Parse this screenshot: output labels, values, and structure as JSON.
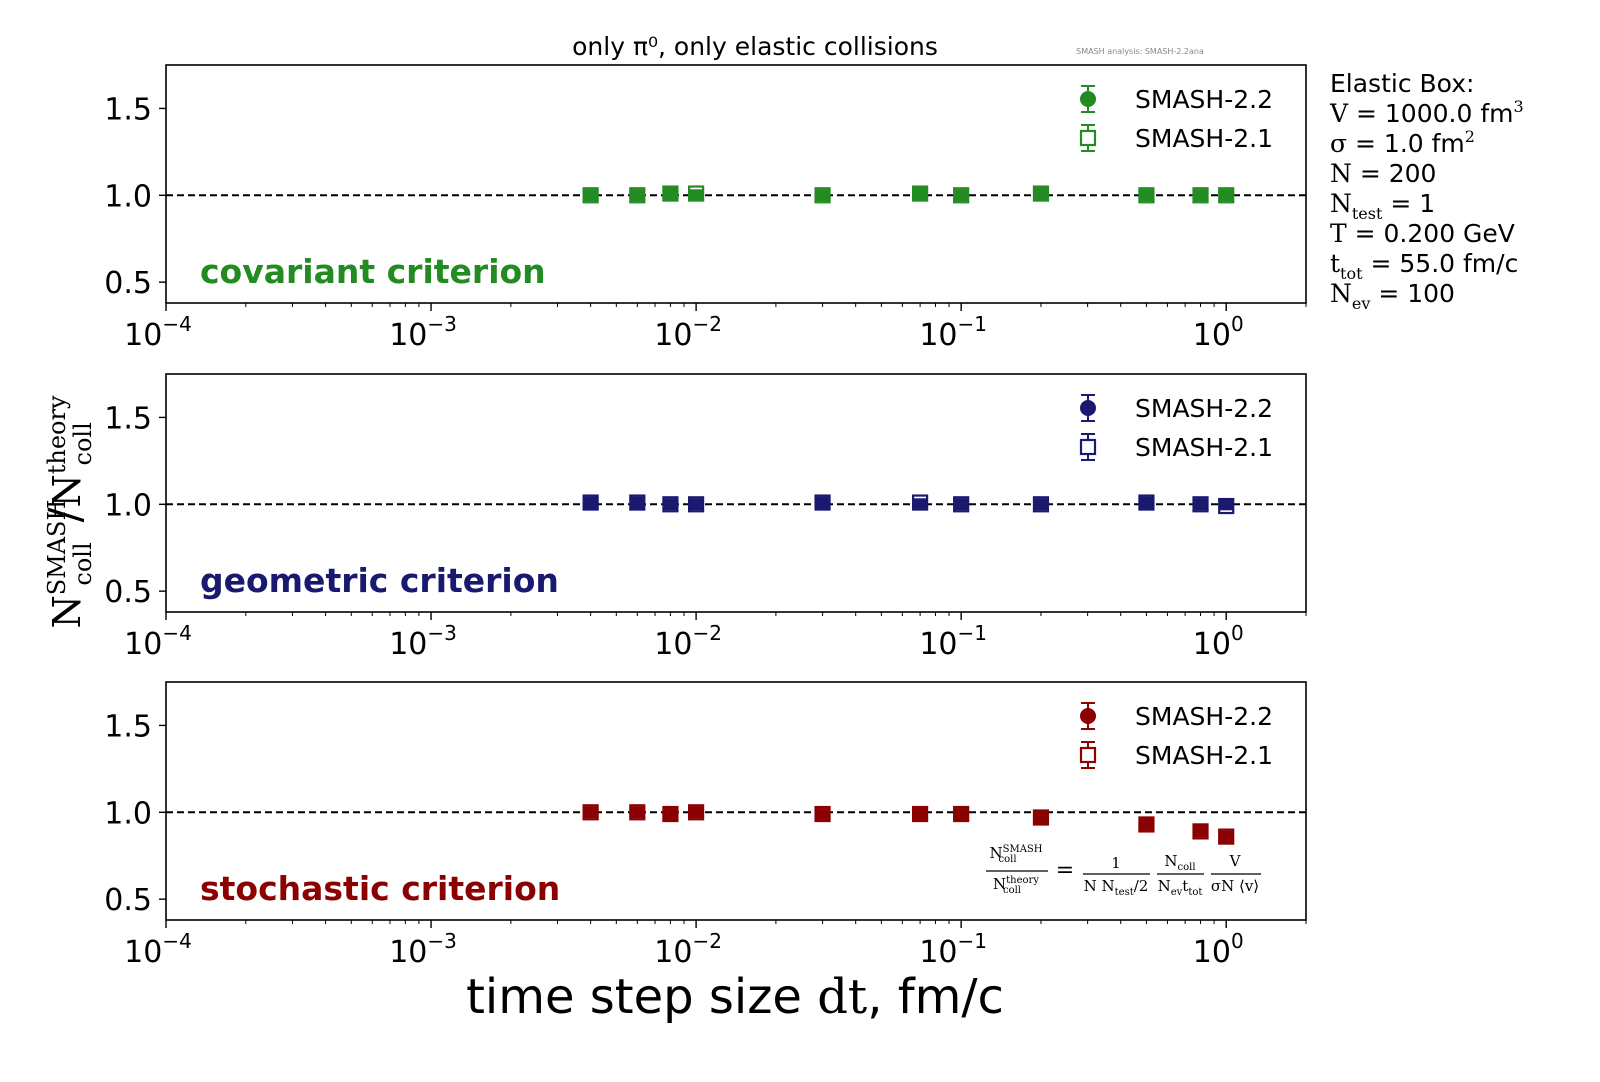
{
  "figure": {
    "title": "only π⁰, only elastic collisions",
    "watermark": "SMASH analysis: SMASH-2.2ana",
    "xlabel_prefix": "time step size ",
    "xlabel_var": "dt",
    "xlabel_suffix": ", fm/c",
    "ylabel_num": "N",
    "ylabel_num_sub": "coll",
    "ylabel_num_sup": "SMASH",
    "ylabel_slash": "/",
    "ylabel_den": "N",
    "ylabel_den_sub": "coll",
    "ylabel_den_sup": "theory",
    "info_box": {
      "heading": "Elastic Box:",
      "lines": [
        {
          "pre": "V",
          "sub": "",
          "post": " = 1000.0 fm",
          "sup": "3"
        },
        {
          "pre": "σ",
          "sub": "",
          "post": " = 1.0 fm",
          "sup": "2"
        },
        {
          "pre": "N",
          "sub": "",
          "post": " = 200",
          "sup": ""
        },
        {
          "pre": "N",
          "sub": "test",
          "post": " = 1",
          "sup": ""
        },
        {
          "pre": "T",
          "sub": "",
          "post": " = 0.200 GeV",
          "sup": ""
        },
        {
          "pre": "t",
          "sub": "tot",
          "post": " = 55.0 fm/c",
          "sup": ""
        },
        {
          "pre": "N",
          "sub": "ev",
          "post": " = 100",
          "sup": ""
        }
      ]
    },
    "formula": {
      "lhs_num": "N",
      "lhs_num_sub": "coll",
      "lhs_num_sup": "SMASH",
      "lhs_den": "N",
      "lhs_den_sub": "coll",
      "lhs_den_sup": "theory",
      "eq": "=",
      "f1_num": "1",
      "f1_den_a": "N N",
      "f1_den_sub": "test",
      "f1_den_b": "/2",
      "f2_num": "N",
      "f2_num_sub": "coll",
      "f2_den_a": "N",
      "f2_den_sub1": "ev",
      "f2_den_b": "t",
      "f2_den_sub2": "tot",
      "f3_num": "V",
      "f3_den": "σN ⟨v⟩"
    }
  },
  "chart_data": [
    {
      "type": "scatter",
      "label": "covariant criterion",
      "color": "#228b22",
      "xscale": "log",
      "xlim": [
        0.0001,
        2
      ],
      "ylim": [
        0.38,
        1.75
      ],
      "yticks": [
        "0.5",
        "1.0",
        "1.5"
      ],
      "ytick_values": [
        0.5,
        1.0,
        1.5
      ],
      "xticks": [
        {
          "base": "10",
          "exp": "−4",
          "value": 0.0001
        },
        {
          "base": "10",
          "exp": "−3",
          "value": 0.001
        },
        {
          "base": "10",
          "exp": "−2",
          "value": 0.01
        },
        {
          "base": "10",
          "exp": "−1",
          "value": 0.1
        },
        {
          "base": "10",
          "exp": "0",
          "value": 1
        }
      ],
      "reference_line": 1.0,
      "legend_placement": "top-right",
      "x": [
        0.004,
        0.006,
        0.008,
        0.01,
        0.03,
        0.07,
        0.1,
        0.2,
        0.5,
        0.8,
        1.0
      ],
      "series": [
        {
          "name": "SMASH-2.2",
          "marker": "filled-circle",
          "values": [
            1.0,
            1.0,
            1.01,
            1.0,
            1.0,
            1.01,
            1.0,
            1.01,
            1.0,
            1.0,
            1.0
          ]
        },
        {
          "name": "SMASH-2.1",
          "marker": "open-square",
          "values": [
            1.0,
            1.0,
            1.01,
            1.01,
            1.0,
            1.01,
            1.0,
            1.01,
            1.0,
            1.0,
            1.0
          ]
        }
      ]
    },
    {
      "type": "scatter",
      "label": "geometric criterion",
      "color": "#191970",
      "xscale": "log",
      "xlim": [
        0.0001,
        2
      ],
      "ylim": [
        0.38,
        1.75
      ],
      "yticks": [
        "0.5",
        "1.0",
        "1.5"
      ],
      "ytick_values": [
        0.5,
        1.0,
        1.5
      ],
      "xticks": [
        {
          "base": "10",
          "exp": "−4",
          "value": 0.0001
        },
        {
          "base": "10",
          "exp": "−3",
          "value": 0.001
        },
        {
          "base": "10",
          "exp": "−2",
          "value": 0.01
        },
        {
          "base": "10",
          "exp": "−1",
          "value": 0.1
        },
        {
          "base": "10",
          "exp": "0",
          "value": 1
        }
      ],
      "reference_line": 1.0,
      "legend_placement": "top-right",
      "x": [
        0.004,
        0.006,
        0.008,
        0.01,
        0.03,
        0.07,
        0.1,
        0.2,
        0.5,
        0.8,
        1.0
      ],
      "series": [
        {
          "name": "SMASH-2.2",
          "marker": "filled-circle",
          "values": [
            1.01,
            1.01,
            1.0,
            1.0,
            1.01,
            1.0,
            1.0,
            1.0,
            1.01,
            1.0,
            1.0
          ]
        },
        {
          "name": "SMASH-2.1",
          "marker": "open-square",
          "values": [
            1.01,
            1.01,
            1.0,
            1.0,
            1.01,
            1.01,
            1.0,
            1.0,
            1.01,
            1.0,
            0.99
          ]
        }
      ]
    },
    {
      "type": "scatter",
      "label": "stochastic criterion",
      "color": "#8b0000",
      "xscale": "log",
      "xlim": [
        0.0001,
        2
      ],
      "ylim": [
        0.38,
        1.75
      ],
      "yticks": [
        "0.5",
        "1.0",
        "1.5"
      ],
      "ytick_values": [
        0.5,
        1.0,
        1.5
      ],
      "xticks": [
        {
          "base": "10",
          "exp": "−4",
          "value": 0.0001
        },
        {
          "base": "10",
          "exp": "−3",
          "value": 0.001
        },
        {
          "base": "10",
          "exp": "−2",
          "value": 0.01
        },
        {
          "base": "10",
          "exp": "−1",
          "value": 0.1
        },
        {
          "base": "10",
          "exp": "0",
          "value": 1
        }
      ],
      "reference_line": 1.0,
      "legend_placement": "top-right",
      "x": [
        0.004,
        0.006,
        0.008,
        0.01,
        0.03,
        0.07,
        0.1,
        0.2,
        0.5,
        0.8,
        1.0
      ],
      "series": [
        {
          "name": "SMASH-2.2",
          "marker": "filled-circle",
          "values": [
            1.0,
            1.0,
            0.99,
            1.0,
            0.99,
            0.99,
            0.99,
            0.97,
            0.93,
            0.89,
            0.86
          ]
        },
        {
          "name": "SMASH-2.1",
          "marker": "open-square",
          "values": [
            1.0,
            1.0,
            0.99,
            1.0,
            0.99,
            0.99,
            0.99,
            0.97,
            0.93,
            0.89,
            0.86
          ]
        }
      ]
    }
  ]
}
